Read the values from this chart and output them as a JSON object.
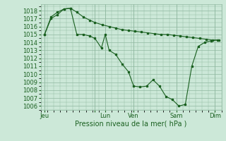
{
  "background_color": "#cce8d8",
  "grid_color": "#90b8a0",
  "line_color": "#1a6020",
  "xlabel": "Pression niveau de la mer( hPa )",
  "xlabel_fontsize": 7,
  "tick_fontsize": 6,
  "ylim": [
    1005.5,
    1018.8
  ],
  "yticks": [
    1006,
    1007,
    1008,
    1009,
    1010,
    1011,
    1012,
    1013,
    1014,
    1015,
    1016,
    1017,
    1018
  ],
  "xlim": [
    0,
    14.0
  ],
  "day_ticks_x": [
    0.3,
    4.2,
    5.0,
    7.2,
    10.5,
    13.5
  ],
  "day_labels": [
    "Jeu",
    "",
    "Lun",
    "Ven",
    "Sam",
    "Dim"
  ],
  "series1_x": [
    0.3,
    0.8,
    1.3,
    1.8,
    2.3,
    2.8,
    3.3,
    3.8,
    4.2,
    4.8,
    5.3,
    5.8,
    6.3,
    6.8,
    7.3,
    7.8,
    8.3,
    8.8,
    9.3,
    9.8,
    10.3,
    10.8,
    11.3,
    11.8,
    12.3,
    12.8,
    13.3,
    13.8
  ],
  "series1_y": [
    1015.0,
    1017.2,
    1017.8,
    1018.2,
    1018.3,
    1017.8,
    1017.2,
    1016.8,
    1016.5,
    1016.2,
    1016.0,
    1015.8,
    1015.6,
    1015.5,
    1015.4,
    1015.3,
    1015.2,
    1015.1,
    1015.0,
    1015.0,
    1014.9,
    1014.8,
    1014.7,
    1014.6,
    1014.5,
    1014.4,
    1014.3,
    1014.3
  ],
  "series2_x": [
    0.3,
    0.8,
    1.3,
    1.8,
    2.3,
    2.8,
    3.3,
    3.8,
    4.2,
    4.7,
    5.0,
    5.3,
    5.8,
    6.3,
    6.8,
    7.2,
    7.7,
    8.2,
    8.7,
    9.2,
    9.7,
    10.2,
    10.7,
    11.2,
    11.7,
    12.2,
    12.7,
    13.2,
    13.7
  ],
  "series2_y": [
    1015.0,
    1017.0,
    1017.5,
    1018.2,
    1018.3,
    1015.0,
    1015.0,
    1014.8,
    1014.5,
    1013.3,
    1015.0,
    1013.0,
    1012.5,
    1011.3,
    1010.3,
    1008.5,
    1008.4,
    1008.5,
    1009.3,
    1008.5,
    1007.2,
    1006.8,
    1006.0,
    1006.2,
    1011.0,
    1013.5,
    1014.0,
    1014.2,
    1014.3
  ]
}
